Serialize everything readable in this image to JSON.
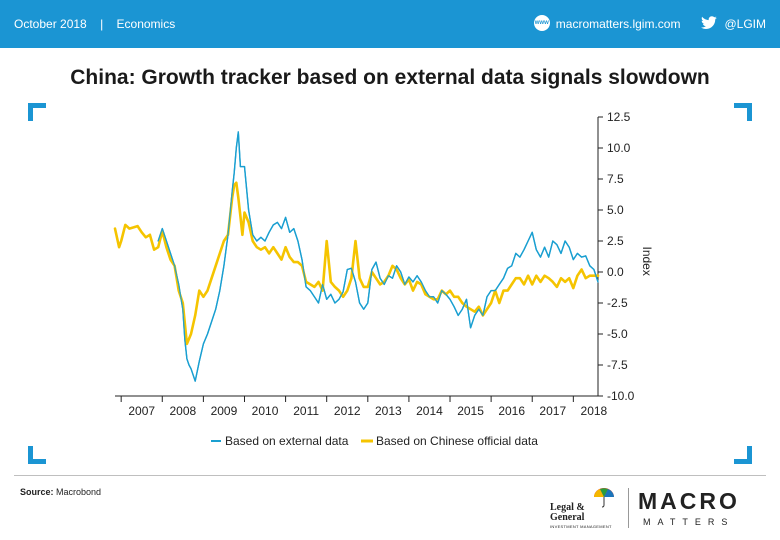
{
  "header": {
    "date": "October 2018",
    "separator": "|",
    "category": "Economics",
    "website": "macromatters.lgim.com",
    "www_icon_text": "www",
    "twitter": "@LGIM",
    "color": "#1b95d3"
  },
  "title": "China: Growth tracker based on external data signals slowdown",
  "footer": {
    "source_label": "Source:",
    "source_value": "Macrobond",
    "lg_name_line1": "Legal &",
    "lg_name_line2": "General",
    "lg_sub": "INVESTMENT MANAGEMENT",
    "macro_text": "MACRO",
    "matters_text": "MATTERS"
  },
  "chart_data": {
    "type": "line",
    "title": "China: Growth tracker based on external data signals slowdown",
    "xlabel": "",
    "ylabel": "Index",
    "y_axis_side": "right",
    "ylim": [
      -10,
      12.5
    ],
    "y_ticks": [
      12.5,
      10.0,
      7.5,
      5.0,
      2.5,
      0.0,
      -2.5,
      -5.0,
      -7.5,
      -10.0
    ],
    "y_tick_labels": [
      "12.5",
      "10.0",
      "7.5",
      "5.0",
      "2.5",
      "0.0",
      "-2.5",
      "-5.0",
      "-7.5",
      "-10.0"
    ],
    "xlim": [
      2006.85,
      2018.6
    ],
    "x_categories": [
      "2007",
      "2008",
      "2009",
      "2010",
      "2011",
      "2012",
      "2013",
      "2014",
      "2015",
      "2016",
      "2017",
      "2018"
    ],
    "grid": false,
    "legend_position": "bottom",
    "series": [
      {
        "name": "Based on external data",
        "color": "#1a9fd0",
        "x": [
          2007.9,
          2008.0,
          2008.1,
          2008.2,
          2008.3,
          2008.4,
          2008.5,
          2008.55,
          2008.6,
          2008.65,
          2008.7,
          2008.8,
          2008.9,
          2009.0,
          2009.1,
          2009.2,
          2009.3,
          2009.4,
          2009.5,
          2009.6,
          2009.7,
          2009.75,
          2009.8,
          2009.85,
          2009.9,
          2010.0,
          2010.1,
          2010.2,
          2010.3,
          2010.4,
          2010.5,
          2010.6,
          2010.7,
          2010.8,
          2010.9,
          2011.0,
          2011.1,
          2011.2,
          2011.3,
          2011.4,
          2011.5,
          2011.6,
          2011.7,
          2011.8,
          2011.9,
          2012.0,
          2012.1,
          2012.2,
          2012.3,
          2012.4,
          2012.5,
          2012.6,
          2012.7,
          2012.8,
          2012.9,
          2013.0,
          2013.1,
          2013.2,
          2013.3,
          2013.4,
          2013.5,
          2013.6,
          2013.7,
          2013.8,
          2013.9,
          2014.0,
          2014.1,
          2014.2,
          2014.3,
          2014.4,
          2014.5,
          2014.6,
          2014.7,
          2014.8,
          2014.9,
          2015.0,
          2015.1,
          2015.2,
          2015.3,
          2015.4,
          2015.5,
          2015.6,
          2015.7,
          2015.8,
          2015.9,
          2016.0,
          2016.1,
          2016.2,
          2016.3,
          2016.4,
          2016.5,
          2016.6,
          2016.7,
          2016.8,
          2016.9,
          2017.0,
          2017.1,
          2017.2,
          2017.3,
          2017.4,
          2017.5,
          2017.6,
          2017.7,
          2017.8,
          2017.9,
          2018.0,
          2018.1,
          2018.2,
          2018.3,
          2018.4,
          2018.5,
          2018.6
        ],
        "values": [
          2.5,
          3.5,
          2.5,
          1.5,
          0.5,
          -1.0,
          -3.0,
          -5.5,
          -7.0,
          -7.5,
          -7.8,
          -8.8,
          -7.2,
          -5.8,
          -5.0,
          -4.0,
          -3.0,
          -1.5,
          0.5,
          3.0,
          6.5,
          8.0,
          10.0,
          11.3,
          8.5,
          8.5,
          5.0,
          3.0,
          2.5,
          2.8,
          2.5,
          3.2,
          3.8,
          4.0,
          3.5,
          4.4,
          3.2,
          3.5,
          2.5,
          1.0,
          -1.2,
          -1.5,
          -2.0,
          -2.5,
          -1.0,
          -2.2,
          -1.8,
          -2.5,
          -2.2,
          -1.6,
          0.2,
          0.3,
          -0.8,
          -2.5,
          -3.0,
          -2.5,
          0.2,
          0.8,
          -0.5,
          -1.0,
          -0.3,
          -0.5,
          0.5,
          0.0,
          -1.0,
          -0.4,
          -0.8,
          -0.3,
          -0.8,
          -1.5,
          -2.0,
          -2.0,
          -2.5,
          -1.5,
          -1.8,
          -2.2,
          -2.8,
          -3.5,
          -3.0,
          -2.2,
          -4.5,
          -3.5,
          -3.0,
          -3.5,
          -2.0,
          -1.5,
          -1.5,
          -1.0,
          -0.5,
          0.3,
          0.5,
          1.5,
          1.2,
          1.8,
          2.5,
          3.2,
          1.8,
          1.2,
          2.0,
          1.2,
          2.5,
          2.2,
          1.5,
          2.5,
          2.0,
          1.0,
          1.5,
          1.2,
          1.3,
          0.5,
          0.2,
          -0.8
        ]
      },
      {
        "name": "Based on Chinese official data",
        "color": "#f5c400",
        "x": [
          2006.85,
          2006.95,
          2007.0,
          2007.1,
          2007.2,
          2007.3,
          2007.4,
          2007.5,
          2007.6,
          2007.7,
          2007.8,
          2007.9,
          2008.0,
          2008.1,
          2008.2,
          2008.3,
          2008.4,
          2008.5,
          2008.6,
          2008.7,
          2008.8,
          2008.9,
          2009.0,
          2009.1,
          2009.2,
          2009.3,
          2009.4,
          2009.5,
          2009.6,
          2009.7,
          2009.75,
          2009.8,
          2009.85,
          2009.9,
          2009.95,
          2010.0,
          2010.1,
          2010.2,
          2010.3,
          2010.4,
          2010.5,
          2010.6,
          2010.7,
          2010.8,
          2010.9,
          2011.0,
          2011.1,
          2011.2,
          2011.3,
          2011.4,
          2011.5,
          2011.6,
          2011.7,
          2011.8,
          2011.9,
          2012.0,
          2012.1,
          2012.2,
          2012.3,
          2012.4,
          2012.5,
          2012.6,
          2012.7,
          2012.8,
          2012.9,
          2013.0,
          2013.1,
          2013.2,
          2013.3,
          2013.4,
          2013.5,
          2013.6,
          2013.7,
          2013.8,
          2013.9,
          2014.0,
          2014.1,
          2014.2,
          2014.3,
          2014.4,
          2014.5,
          2014.6,
          2014.7,
          2014.8,
          2014.9,
          2015.0,
          2015.1,
          2015.2,
          2015.3,
          2015.4,
          2015.5,
          2015.6,
          2015.7,
          2015.8,
          2015.9,
          2016.0,
          2016.1,
          2016.2,
          2016.3,
          2016.4,
          2016.5,
          2016.6,
          2016.7,
          2016.8,
          2016.9,
          2017.0,
          2017.1,
          2017.2,
          2017.3,
          2017.4,
          2017.5,
          2017.6,
          2017.7,
          2017.8,
          2017.9,
          2018.0,
          2018.1,
          2018.2,
          2018.3,
          2018.4,
          2018.5,
          2018.6
        ],
        "values": [
          3.5,
          2.0,
          2.5,
          3.8,
          3.5,
          3.6,
          3.7,
          3.2,
          2.8,
          3.0,
          1.8,
          2.0,
          3.3,
          2.0,
          1.0,
          0.5,
          -1.5,
          -2.5,
          -5.8,
          -5.0,
          -3.5,
          -1.5,
          -2.0,
          -1.5,
          -0.5,
          0.5,
          1.5,
          2.5,
          3.0,
          6.0,
          7.0,
          7.2,
          6.0,
          4.5,
          3.0,
          4.8,
          4.0,
          2.5,
          2.0,
          1.8,
          2.0,
          1.5,
          2.0,
          1.5,
          1.0,
          2.0,
          1.2,
          0.8,
          0.8,
          0.5,
          -0.8,
          -1.0,
          -1.2,
          -0.8,
          -1.5,
          2.5,
          -0.8,
          -1.2,
          -1.5,
          -2.0,
          -1.5,
          -0.5,
          2.5,
          -0.5,
          -1.2,
          -1.2,
          0.0,
          -0.5,
          -1.0,
          -0.8,
          -0.3,
          0.5,
          0.2,
          -0.5,
          -1.0,
          -0.6,
          -1.5,
          -0.8,
          -1.0,
          -1.8,
          -2.0,
          -2.2,
          -2.2,
          -1.5,
          -1.8,
          -1.5,
          -2.0,
          -2.0,
          -2.5,
          -2.8,
          -3.0,
          -3.2,
          -2.8,
          -3.5,
          -3.0,
          -2.5,
          -1.5,
          -2.5,
          -1.5,
          -1.5,
          -1.0,
          -0.5,
          -0.5,
          -1.0,
          -0.3,
          -1.0,
          -0.3,
          -0.8,
          -0.3,
          -0.5,
          -0.8,
          -1.2,
          -0.5,
          -0.8,
          -0.5,
          -1.3,
          -0.3,
          0.2,
          -0.5,
          -0.3,
          -0.3,
          -0.3
        ]
      }
    ]
  }
}
